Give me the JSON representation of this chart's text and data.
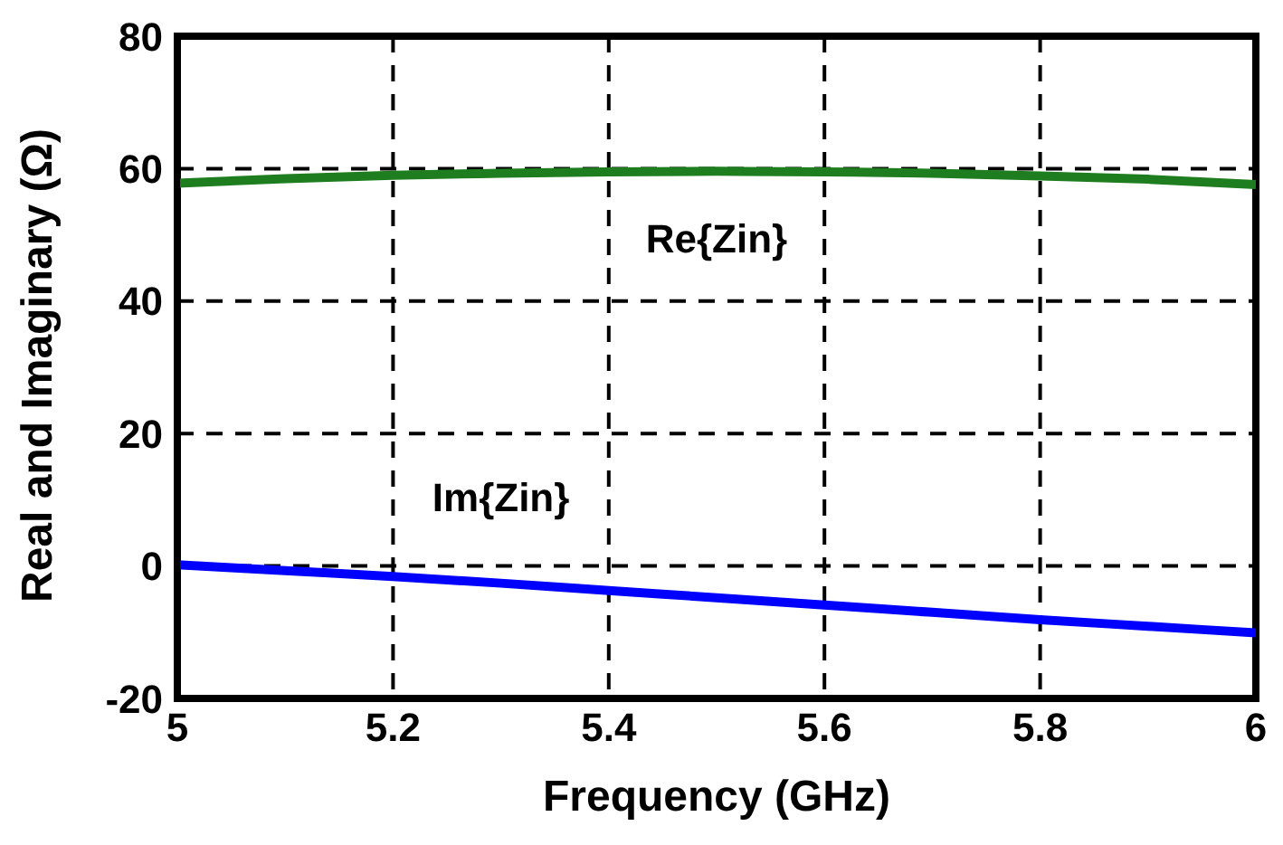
{
  "chart_data": {
    "type": "line",
    "xlabel": "Frequency (GHz)",
    "ylabel": "Real and Imaginary (Ω)",
    "x": [
      5,
      5.1,
      5.2,
      5.3,
      5.4,
      5.5,
      5.6,
      5.7,
      5.8,
      5.9,
      6
    ],
    "series": [
      {
        "name": "Re{Zin}",
        "color": "#1e7d1e",
        "values": [
          57.8,
          58.5,
          59,
          59.3,
          59.5,
          59.6,
          59.5,
          59.3,
          58.9,
          58.4,
          57.6
        ]
      },
      {
        "name": "Im{Zin}",
        "color": "#0000ff",
        "values": [
          0.2,
          -0.7,
          -1.6,
          -2.6,
          -3.7,
          -4.8,
          -5.9,
          -7,
          -8.1,
          -9.1,
          -10.1
        ]
      }
    ],
    "xlim": [
      5,
      6
    ],
    "xticks": [
      5,
      5.2,
      5.4,
      5.6,
      5.8,
      6
    ],
    "ylim": [
      -20,
      80
    ],
    "yticks": [
      -20,
      0,
      20,
      40,
      60,
      80
    ],
    "grid": true,
    "marker": "none",
    "line_style": "solid"
  }
}
